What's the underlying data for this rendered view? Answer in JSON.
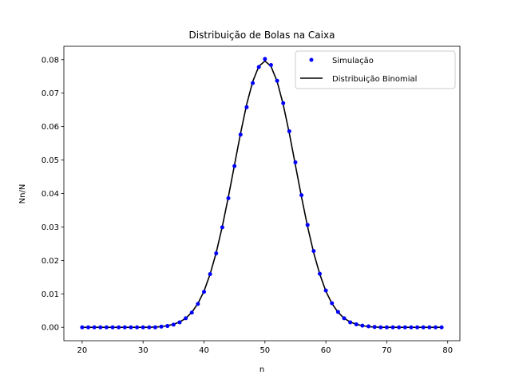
{
  "chart_data": {
    "type": "line",
    "title": "Distribuição de Bolas na Caixa",
    "xlabel": "n",
    "ylabel": "Nn/N",
    "xlim": [
      17,
      82
    ],
    "ylim": [
      -0.004,
      0.084
    ],
    "xticks": [
      20,
      30,
      40,
      50,
      60,
      70,
      80
    ],
    "yticks": [
      0.0,
      0.01,
      0.02,
      0.03,
      0.04,
      0.05,
      0.06,
      0.07,
      0.08
    ],
    "ytick_labels": [
      "0.00",
      "0.01",
      "0.02",
      "0.03",
      "0.04",
      "0.05",
      "0.06",
      "0.07",
      "0.08"
    ],
    "legend_position": "top-right",
    "series": [
      {
        "name": "Simulação",
        "style": "points",
        "color": "#0000ff",
        "x": [
          20,
          21,
          22,
          23,
          24,
          25,
          26,
          27,
          28,
          29,
          30,
          31,
          32,
          33,
          34,
          35,
          36,
          37,
          38,
          39,
          40,
          41,
          42,
          43,
          44,
          45,
          46,
          47,
          48,
          49,
          50,
          51,
          52,
          53,
          54,
          55,
          56,
          57,
          58,
          59,
          60,
          61,
          62,
          63,
          64,
          65,
          66,
          67,
          68,
          69,
          70,
          71,
          72,
          73,
          74,
          75,
          76,
          77,
          78,
          79
        ],
        "y": [
          0.0,
          0.0,
          0.0,
          0.0,
          0.0,
          0.0,
          0.0,
          0.0,
          0.0,
          0.0,
          0.0,
          0.0,
          0.0,
          0.0002,
          0.0004,
          0.0008,
          0.0015,
          0.0027,
          0.0044,
          0.007,
          0.0106,
          0.0159,
          0.0221,
          0.0299,
          0.0386,
          0.0482,
          0.0576,
          0.0658,
          0.073,
          0.0778,
          0.0802,
          0.0784,
          0.0737,
          0.067,
          0.0586,
          0.0493,
          0.0395,
          0.0306,
          0.0228,
          0.016,
          0.011,
          0.0072,
          0.0046,
          0.0027,
          0.0015,
          0.0009,
          0.0005,
          0.0003,
          0.0001,
          0.0,
          0.0,
          0.0,
          0.0,
          0.0,
          0.0,
          0.0,
          0.0,
          0.0,
          0.0,
          0.0
        ]
      },
      {
        "name": "Distribuição Binomial",
        "style": "line",
        "color": "#000000",
        "x": [
          20,
          21,
          22,
          23,
          24,
          25,
          26,
          27,
          28,
          29,
          30,
          31,
          32,
          33,
          34,
          35,
          36,
          37,
          38,
          39,
          40,
          41,
          42,
          43,
          44,
          45,
          46,
          47,
          48,
          49,
          50,
          51,
          52,
          53,
          54,
          55,
          56,
          57,
          58,
          59,
          60,
          61,
          62,
          63,
          64,
          65,
          66,
          67,
          68,
          69,
          70,
          71,
          72,
          73,
          74,
          75,
          76,
          77,
          78,
          79
        ],
        "y": [
          0.0,
          0.0,
          0.0,
          0.0,
          0.0,
          0.0,
          0.0,
          0.0,
          0.0,
          0.0,
          0.0,
          0.0,
          0.0001,
          0.0002,
          0.0005,
          0.0009,
          0.0016,
          0.0027,
          0.0045,
          0.0071,
          0.0108,
          0.0159,
          0.0223,
          0.0301,
          0.039,
          0.0485,
          0.058,
          0.0666,
          0.0735,
          0.078,
          0.0796,
          0.078,
          0.0735,
          0.0666,
          0.058,
          0.0485,
          0.039,
          0.0301,
          0.0223,
          0.0159,
          0.0108,
          0.0071,
          0.0045,
          0.0027,
          0.0016,
          0.0009,
          0.0005,
          0.0002,
          0.0001,
          0.0,
          0.0,
          0.0,
          0.0,
          0.0,
          0.0,
          0.0,
          0.0,
          0.0,
          0.0,
          0.0
        ]
      }
    ]
  }
}
